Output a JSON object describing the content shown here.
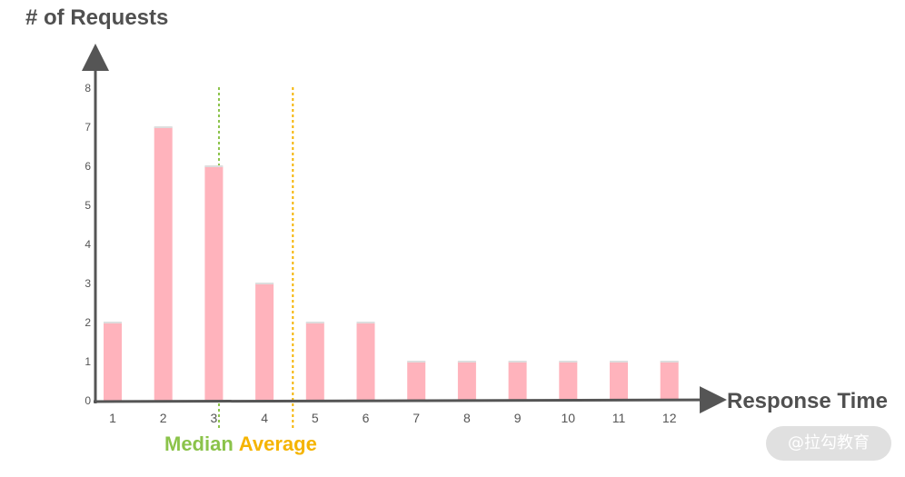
{
  "chart_data": {
    "type": "bar",
    "categories": [
      "1",
      "2",
      "3",
      "4",
      "5",
      "6",
      "7",
      "8",
      "9",
      "10",
      "11",
      "12"
    ],
    "values": [
      2,
      7,
      6,
      3,
      2,
      2,
      1,
      1,
      1,
      1,
      1,
      1
    ],
    "ylabel": "# of Requests",
    "xlabel": "Response Time",
    "yticks": [
      "0",
      "1",
      "2",
      "3",
      "4",
      "5",
      "6",
      "7",
      "8"
    ],
    "ylim": [
      0,
      8
    ],
    "grid": true,
    "bar_color": "#ffb3bc",
    "reference_lines": [
      {
        "label": "Median",
        "x": 3.1,
        "color": "#8bc34a",
        "style": "dotted"
      },
      {
        "label": "Average",
        "x": 4.56,
        "color": "#f5b400",
        "style": "dotted"
      }
    ]
  },
  "watermark": "@拉勾教育",
  "colors": {
    "axis": "#555555",
    "grid": "#cccccc",
    "text": "#505050",
    "median": "#8bc34a",
    "average": "#f5b400"
  }
}
